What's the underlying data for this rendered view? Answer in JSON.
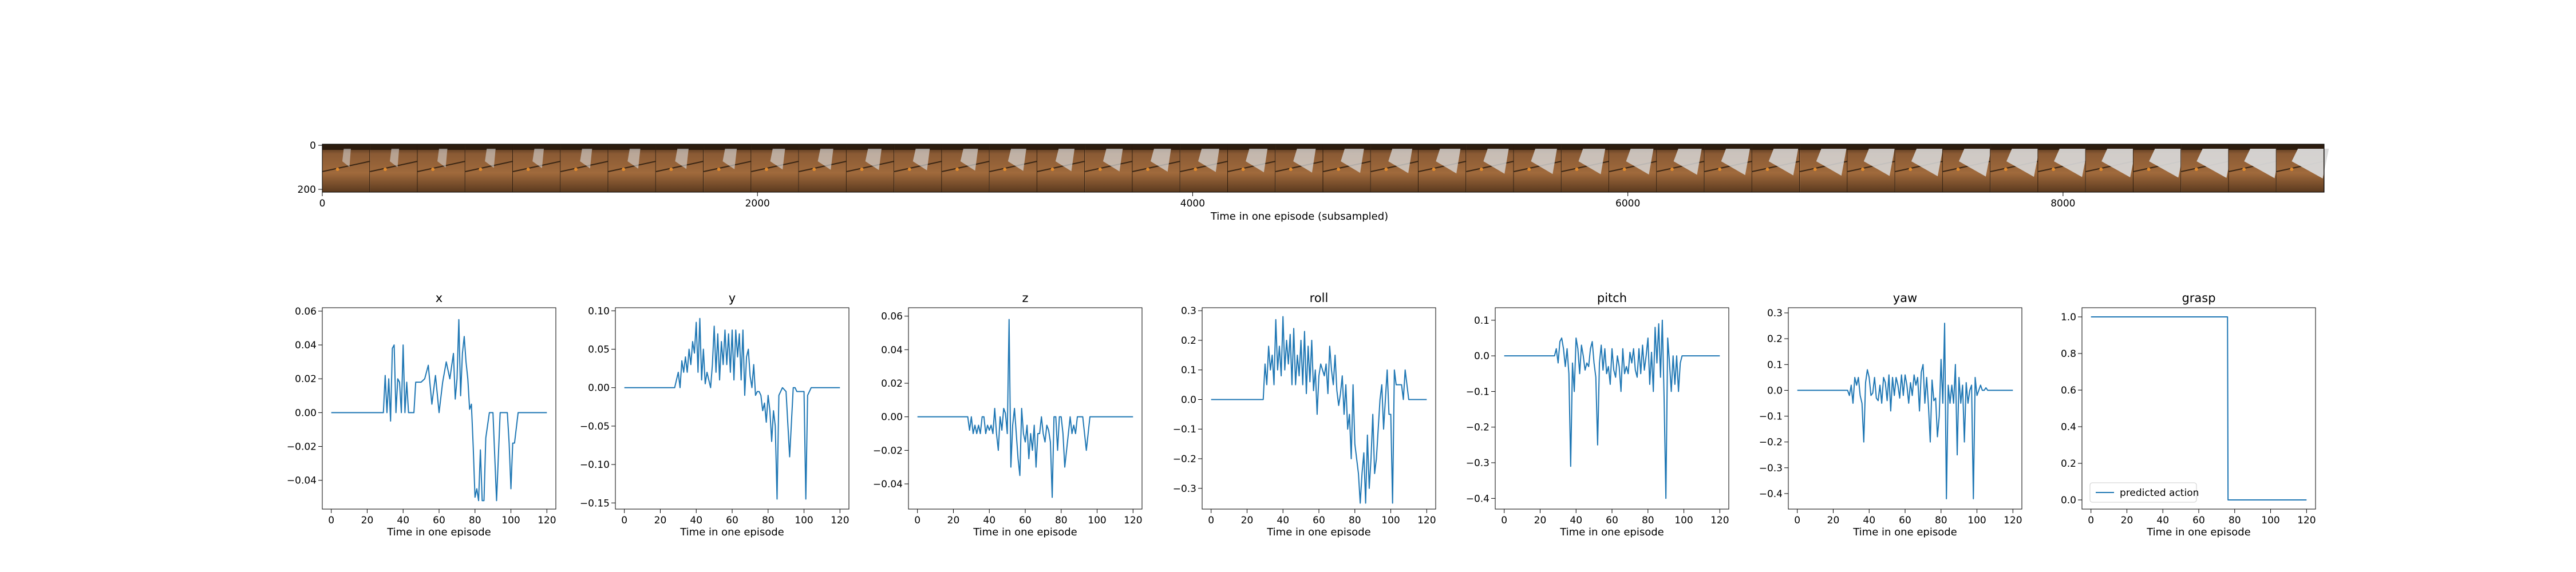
{
  "filmstrip": {
    "frame_count": 42,
    "y_ticks": [
      "0",
      "200"
    ],
    "x_ticks": [
      0,
      2000,
      4000,
      6000,
      8000
    ],
    "x_max": 9200,
    "xlabel": "Time in one episode (subsampled)",
    "colors": {
      "wood": "#8a5a34",
      "wood_dark": "#5b3a1f",
      "cloth": "#d9d9d9",
      "object": "#e08a2c"
    }
  },
  "chart_data": [
    {
      "type": "line",
      "title": "x",
      "xlabel": "Time in one episode",
      "ylabel": "",
      "xlim": [
        -5,
        125
      ],
      "ylim": [
        -0.057,
        0.062
      ],
      "xticks": [
        0,
        20,
        40,
        60,
        80,
        100,
        120
      ],
      "yticks": [
        -0.04,
        -0.02,
        0.0,
        0.02,
        0.04,
        0.06
      ],
      "ytick_labels": [
        "−0.04",
        "−0.02",
        "0.00",
        "0.02",
        "0.04",
        "0.06"
      ],
      "color": "#1f77b4",
      "x": [
        0,
        5,
        10,
        15,
        20,
        25,
        29,
        30,
        31,
        32,
        33,
        34,
        35,
        36,
        37,
        38,
        39,
        40,
        41,
        42,
        43,
        44,
        45,
        46,
        47,
        48,
        49,
        50,
        52,
        54,
        56,
        58,
        60,
        62,
        64,
        66,
        68,
        69,
        70,
        71,
        72,
        73,
        74,
        75,
        76,
        77,
        78,
        79,
        80,
        81,
        82,
        83,
        84,
        85,
        86,
        88,
        90,
        92,
        94,
        96,
        97,
        98,
        99,
        100,
        101,
        102,
        104,
        106,
        108,
        110,
        112,
        115,
        120
      ],
      "y": [
        0,
        0,
        0,
        0,
        0,
        0,
        0,
        0.022,
        0,
        0.02,
        -0.005,
        0.038,
        0.04,
        0,
        0.02,
        0.018,
        0,
        0.04,
        0,
        0.018,
        0,
        0,
        0,
        0,
        0.018,
        0.018,
        0.018,
        0.018,
        0.02,
        0.028,
        0.005,
        0.022,
        0,
        0.018,
        0.03,
        0.02,
        0.035,
        0.008,
        0.02,
        0.055,
        0.01,
        0.035,
        0.045,
        0.03,
        0.02,
        0.002,
        0.005,
        -0.02,
        -0.05,
        -0.045,
        -0.052,
        -0.022,
        -0.052,
        -0.052,
        -0.015,
        0,
        0,
        -0.052,
        0,
        0,
        0,
        0,
        -0.018,
        -0.045,
        -0.018,
        -0.018,
        0,
        0,
        0,
        0,
        0,
        0,
        0
      ]
    },
    {
      "type": "line",
      "title": "y",
      "xlabel": "Time in one episode",
      "ylabel": "",
      "xlim": [
        -5,
        125
      ],
      "ylim": [
        -0.158,
        0.104
      ],
      "xticks": [
        0,
        20,
        40,
        60,
        80,
        100,
        120
      ],
      "yticks": [
        -0.15,
        -0.1,
        -0.05,
        0.0,
        0.05,
        0.1
      ],
      "ytick_labels": [
        "−0.15",
        "−0.10",
        "−0.05",
        "0.00",
        "0.05",
        "0.10"
      ],
      "color": "#1f77b4",
      "x": [
        0,
        5,
        10,
        15,
        20,
        25,
        28,
        30,
        31,
        32,
        33,
        34,
        35,
        36,
        37,
        38,
        39,
        40,
        41,
        42,
        43,
        44,
        45,
        46,
        47,
        48,
        49,
        50,
        51,
        52,
        53,
        54,
        55,
        56,
        57,
        58,
        59,
        60,
        61,
        62,
        63,
        64,
        65,
        66,
        67,
        68,
        69,
        70,
        71,
        72,
        73,
        74,
        75,
        76,
        77,
        78,
        79,
        80,
        81,
        82,
        83,
        84,
        85,
        86,
        88,
        90,
        92,
        94,
        95,
        96,
        98,
        100,
        101,
        102,
        104,
        106,
        108,
        110,
        115,
        120
      ],
      "y": [
        0,
        0,
        0,
        0,
        0,
        0,
        0,
        0.02,
        0,
        0.035,
        0.02,
        0.04,
        0.02,
        0.05,
        0.03,
        0.06,
        0.045,
        0.085,
        0.02,
        0.09,
        0.01,
        0.05,
        0.005,
        0.02,
        0.01,
        0,
        0.03,
        0.08,
        0.02,
        0.07,
        0.01,
        0.06,
        0.03,
        0.075,
        0.03,
        0.07,
        0.02,
        0.075,
        0.01,
        0.075,
        0.04,
        0.07,
        0.01,
        0.075,
        -0.01,
        0.04,
        0.05,
        0.015,
        0,
        0.03,
        -0.01,
        -0.005,
        -0.005,
        -0.01,
        -0.03,
        -0.02,
        -0.045,
        -0.01,
        -0.03,
        -0.07,
        -0.03,
        -0.05,
        -0.145,
        -0.01,
        0,
        -0.005,
        -0.09,
        0,
        0,
        -0.005,
        -0.005,
        -0.005,
        -0.145,
        -0.01,
        0,
        0,
        0,
        0,
        0,
        0
      ]
    },
    {
      "type": "line",
      "title": "z",
      "xlabel": "Time in one episode",
      "ylabel": "",
      "xlim": [
        -5,
        125
      ],
      "ylim": [
        -0.055,
        0.065
      ],
      "xticks": [
        0,
        20,
        40,
        60,
        80,
        100,
        120
      ],
      "yticks": [
        -0.04,
        -0.02,
        0.0,
        0.02,
        0.04,
        0.06
      ],
      "ytick_labels": [
        "−0.04",
        "−0.02",
        "0.00",
        "0.02",
        "0.04",
        "0.06"
      ],
      "color": "#1f77b4",
      "x": [
        0,
        5,
        10,
        15,
        20,
        25,
        28,
        29,
        30,
        31,
        32,
        33,
        34,
        35,
        36,
        37,
        38,
        39,
        40,
        41,
        42,
        43,
        44,
        45,
        46,
        47,
        48,
        49,
        50,
        51,
        52,
        53,
        54,
        55,
        56,
        57,
        58,
        59,
        60,
        61,
        62,
        63,
        64,
        65,
        66,
        67,
        68,
        69,
        70,
        71,
        72,
        73,
        74,
        75,
        76,
        77,
        78,
        79,
        80,
        81,
        82,
        83,
        84,
        85,
        86,
        87,
        88,
        89,
        90,
        91,
        92,
        94,
        96,
        98,
        100,
        102,
        104,
        106,
        108,
        110,
        115,
        120
      ],
      "y": [
        0,
        0,
        0,
        0,
        0,
        0,
        0,
        -0.008,
        0,
        -0.01,
        -0.005,
        -0.01,
        -0.005,
        -0.01,
        0,
        0,
        -0.01,
        -0.005,
        -0.008,
        -0.005,
        -0.01,
        0.005,
        -0.01,
        -0.02,
        0,
        -0.008,
        0.005,
        0.002,
        -0.01,
        0.058,
        -0.03,
        -0.005,
        0.005,
        -0.01,
        -0.025,
        -0.035,
        0.005,
        -0.01,
        -0.015,
        -0.005,
        -0.025,
        -0.01,
        -0.02,
        -0.005,
        -0.03,
        -0.01,
        -0.01,
        0,
        -0.01,
        -0.015,
        -0.005,
        -0.008,
        -0.015,
        -0.048,
        0,
        0,
        -0.02,
        0,
        0,
        -0.01,
        -0.03,
        -0.02,
        -0.01,
        0,
        -0.01,
        -0.005,
        -0.01,
        0,
        0,
        0,
        0,
        -0.02,
        0,
        0,
        0,
        0,
        0,
        0,
        0,
        0,
        0,
        0
      ]
    },
    {
      "type": "line",
      "title": "roll",
      "xlabel": "Time in one episode",
      "ylabel": "",
      "xlim": [
        -5,
        125
      ],
      "ylim": [
        -0.37,
        0.31
      ],
      "xticks": [
        0,
        20,
        40,
        60,
        80,
        100,
        120
      ],
      "yticks": [
        -0.3,
        -0.2,
        -0.1,
        0.0,
        0.1,
        0.2,
        0.3
      ],
      "ytick_labels": [
        "−0.3",
        "−0.2",
        "−0.1",
        "0.0",
        "0.1",
        "0.2",
        "0.3"
      ],
      "color": "#1f77b4",
      "x": [
        0,
        5,
        10,
        15,
        20,
        25,
        29,
        30,
        31,
        32,
        33,
        34,
        35,
        36,
        37,
        38,
        39,
        40,
        41,
        42,
        43,
        44,
        45,
        46,
        47,
        48,
        49,
        50,
        51,
        52,
        53,
        54,
        55,
        56,
        57,
        58,
        59,
        60,
        61,
        62,
        63,
        64,
        65,
        66,
        67,
        68,
        69,
        70,
        71,
        72,
        73,
        74,
        75,
        76,
        77,
        78,
        79,
        80,
        81,
        82,
        83,
        84,
        85,
        86,
        87,
        88,
        89,
        90,
        91,
        92,
        93,
        94,
        95,
        96,
        97,
        98,
        99,
        100,
        101,
        102,
        103,
        104,
        105,
        106,
        107,
        108,
        110,
        115,
        120
      ],
      "y": [
        0,
        0,
        0,
        0,
        0,
        0,
        0,
        0.12,
        0.05,
        0.18,
        0.1,
        0.15,
        0.05,
        0.27,
        0.1,
        0.18,
        0.08,
        0.28,
        0.1,
        0.2,
        0.12,
        0.22,
        0.05,
        0.24,
        0.05,
        0.15,
        0.08,
        0.2,
        0.05,
        0.23,
        0.02,
        0.18,
        0.06,
        0.2,
        0.03,
        0.1,
        -0.05,
        0.08,
        0.12,
        0.1,
        0.08,
        0.12,
        0.02,
        0.18,
        0.1,
        0.05,
        0.15,
        0.03,
        -0.02,
        0.02,
        0.08,
        -0.05,
        0.05,
        -0.1,
        -0.05,
        -0.2,
        0.05,
        -0.15,
        -0.2,
        -0.25,
        -0.35,
        -0.25,
        -0.18,
        -0.35,
        -0.12,
        -0.3,
        -0.2,
        -0.05,
        -0.25,
        -0.2,
        -0.1,
        0,
        0.05,
        -0.1,
        0,
        0.1,
        -0.05,
        -0.05,
        -0.35,
        0.1,
        0.05,
        0.05,
        0.05,
        0.05,
        0,
        0.1,
        0,
        0,
        0
      ]
    },
    {
      "type": "line",
      "title": "pitch",
      "xlabel": "Time in one episode",
      "ylabel": "",
      "xlim": [
        -5,
        125
      ],
      "ylim": [
        -0.43,
        0.135
      ],
      "xticks": [
        0,
        20,
        40,
        60,
        80,
        100,
        120
      ],
      "yticks": [
        -0.4,
        -0.3,
        -0.2,
        -0.1,
        0.0,
        0.1
      ],
      "ytick_labels": [
        "−0.4",
        "−0.3",
        "−0.2",
        "−0.1",
        "0.0",
        "0.1"
      ],
      "color": "#1f77b4",
      "x": [
        0,
        5,
        10,
        15,
        20,
        25,
        28,
        29,
        30,
        31,
        32,
        33,
        34,
        35,
        36,
        37,
        38,
        39,
        40,
        41,
        42,
        43,
        44,
        45,
        46,
        47,
        48,
        49,
        50,
        51,
        52,
        53,
        54,
        55,
        56,
        57,
        58,
        59,
        60,
        61,
        62,
        63,
        64,
        65,
        66,
        67,
        68,
        69,
        70,
        71,
        72,
        73,
        74,
        75,
        76,
        77,
        78,
        79,
        80,
        81,
        82,
        83,
        84,
        85,
        86,
        87,
        88,
        89,
        90,
        91,
        92,
        93,
        94,
        95,
        96,
        97,
        98,
        99,
        100,
        102,
        104,
        106,
        108,
        110,
        115,
        120
      ],
      "y": [
        0,
        0,
        0,
        0,
        0,
        0,
        0,
        0.02,
        -0.02,
        0.04,
        0.05,
        0.02,
        -0.03,
        0.02,
        -0.05,
        -0.31,
        -0.02,
        -0.1,
        0.05,
        0.02,
        -0.05,
        0.03,
        0,
        -0.04,
        -0.02,
        -0.03,
        0.02,
        0.04,
        -0.02,
        -0.06,
        -0.25,
        -0.02,
        0.03,
        -0.04,
        0.02,
        -0.05,
        -0.03,
        -0.08,
        0.02,
        -0.04,
        -0.06,
        0,
        -0.03,
        -0.1,
        0.02,
        -0.05,
        -0.03,
        -0.05,
        0.01,
        -0.02,
        0.02,
        -0.04,
        -0.06,
        0.02,
        -0.05,
        0.03,
        -0.04,
        0,
        0.05,
        -0.08,
        0.01,
        -0.1,
        0.08,
        -0.02,
        0.09,
        -0.06,
        0.1,
        -0.12,
        -0.4,
        0.05,
        -0.02,
        -0.1,
        0,
        -0.08,
        0,
        -0.1,
        -0.02,
        0,
        0,
        0,
        0,
        0,
        0,
        0,
        0,
        0
      ]
    },
    {
      "type": "line",
      "title": "yaw",
      "xlabel": "Time in one episode",
      "ylabel": "",
      "xlim": [
        -5,
        125
      ],
      "ylim": [
        -0.46,
        0.32
      ],
      "xticks": [
        0,
        20,
        40,
        60,
        80,
        100,
        120
      ],
      "yticks": [
        -0.4,
        -0.3,
        -0.2,
        -0.1,
        0.0,
        0.1,
        0.2,
        0.3
      ],
      "ytick_labels": [
        "−0.4",
        "−0.3",
        "−0.2",
        "−0.1",
        "0.0",
        "0.1",
        "0.2",
        "0.3"
      ],
      "color": "#1f77b4",
      "x": [
        0,
        5,
        10,
        15,
        20,
        25,
        28,
        29,
        30,
        31,
        32,
        33,
        34,
        35,
        36,
        37,
        38,
        39,
        40,
        41,
        42,
        43,
        44,
        45,
        46,
        47,
        48,
        49,
        50,
        51,
        52,
        53,
        54,
        55,
        56,
        57,
        58,
        59,
        60,
        61,
        62,
        63,
        64,
        65,
        66,
        67,
        68,
        69,
        70,
        71,
        72,
        73,
        74,
        75,
        76,
        77,
        78,
        79,
        80,
        81,
        82,
        83,
        84,
        85,
        86,
        87,
        88,
        89,
        90,
        91,
        92,
        93,
        94,
        95,
        96,
        97,
        98,
        99,
        100,
        101,
        102,
        103,
        104,
        105,
        106,
        108,
        110,
        115,
        120
      ],
      "y": [
        0,
        0,
        0,
        0,
        0,
        0,
        0,
        -0.02,
        0.02,
        -0.05,
        0.05,
        0.02,
        0.05,
        -0.02,
        -0.05,
        -0.2,
        0.03,
        0.08,
        0.05,
        -0.02,
        -0.01,
        0.05,
        -0.03,
        -0.04,
        0.02,
        -0.05,
        0.05,
        0.03,
        -0.04,
        0.06,
        -0.08,
        0.05,
        -0.02,
        0.05,
        0.02,
        -0.03,
        0.06,
        -0.02,
        0.06,
        0.02,
        -0.05,
        0.03,
        -0.02,
        0.06,
        0.02,
        0.05,
        -0.08,
        0.07,
        0.1,
        -0.05,
        0.05,
        -0.06,
        -0.2,
        0.04,
        -0.04,
        -0.03,
        -0.18,
        -0.1,
        0.12,
        -0.05,
        0.26,
        -0.42,
        0.02,
        -0.05,
        0.02,
        -0.05,
        0.1,
        -0.25,
        0.05,
        -0.05,
        0.02,
        -0.2,
        0.03,
        -0.05,
        0,
        0.02,
        -0.42,
        0.05,
        -0.02,
        0,
        0.02,
        0,
        0,
        0.01,
        0,
        0,
        0,
        0,
        0
      ]
    },
    {
      "type": "line",
      "title": "grasp",
      "xlabel": "Time in one episode",
      "ylabel": "",
      "xlim": [
        -5,
        125
      ],
      "ylim": [
        -0.05,
        1.05
      ],
      "xticks": [
        0,
        20,
        40,
        60,
        80,
        100,
        120
      ],
      "yticks": [
        0.0,
        0.2,
        0.4,
        0.6,
        0.8,
        1.0
      ],
      "ytick_labels": [
        "0.0",
        "0.2",
        "0.4",
        "0.6",
        "0.8",
        "1.0"
      ],
      "color": "#1f77b4",
      "x": [
        0,
        76,
        76.3,
        120
      ],
      "y": [
        1.0,
        1.0,
        0.0,
        0.0
      ],
      "legend": {
        "label": "predicted action",
        "loc": "lower left"
      }
    }
  ]
}
